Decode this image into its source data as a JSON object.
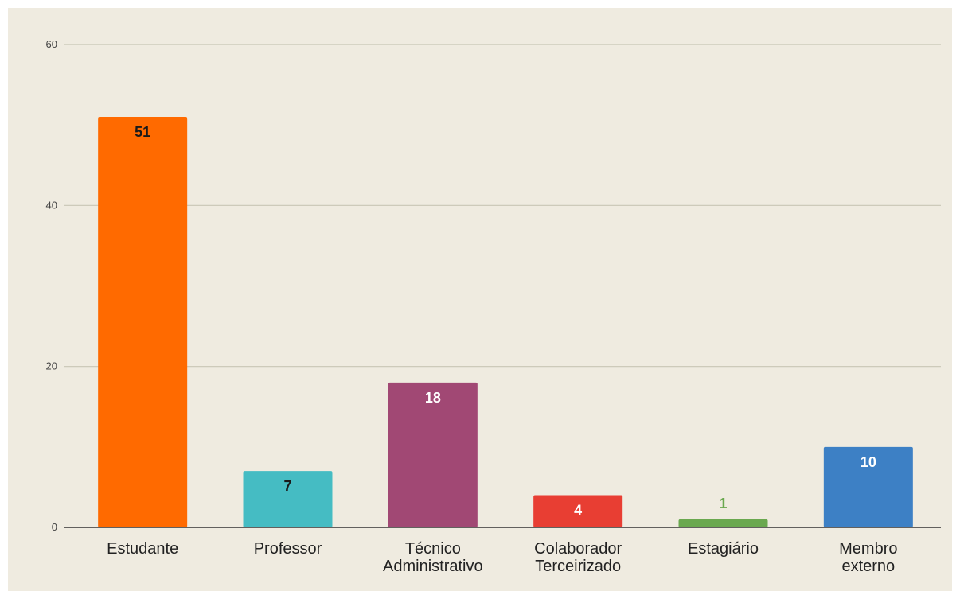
{
  "chart_data": {
    "type": "bar",
    "title": "",
    "xlabel": "",
    "ylabel": "",
    "ylim": [
      0,
      60
    ],
    "yticks": [
      0,
      20,
      40,
      60
    ],
    "grid": true,
    "legend": "none",
    "categories": [
      [
        "Estudante"
      ],
      [
        "Professor"
      ],
      [
        "Técnico",
        "Administrativo"
      ],
      [
        "Colaborador",
        "Terceirizado"
      ],
      [
        "Estagiário"
      ],
      [
        "Membro",
        "externo"
      ]
    ],
    "values": [
      51,
      7,
      18,
      4,
      1,
      10
    ],
    "data_labels": [
      "51",
      "7",
      "18",
      "4",
      "1",
      "10"
    ],
    "colors": [
      "#ff6a00",
      "#45bcc3",
      "#a14874",
      "#e83e33",
      "#6aa84f",
      "#3d80c5"
    ],
    "label_colors": [
      "#1a1a1a",
      "#1a1a1a",
      "#ffffff",
      "#ffffff",
      "#6aa84f",
      "#ffffff"
    ]
  }
}
